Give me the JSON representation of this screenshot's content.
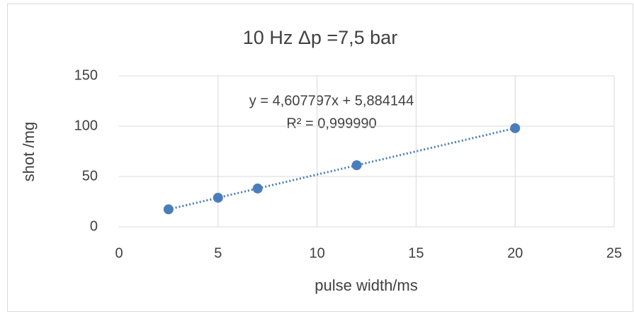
{
  "chart_data": {
    "type": "scatter",
    "title": "10 Hz Δp =7,5 bar",
    "x_label": "pulse width/ms",
    "y_label": "shot /mg",
    "annotations": [
      "y = 4,607797x + 5,884144",
      "R² = 0,999990"
    ],
    "x": [
      2.5,
      5,
      7,
      12,
      20
    ],
    "values": [
      17.4,
      28.9,
      38.1,
      61.2,
      98.0
    ],
    "color": "#4a7ebb",
    "trendline": true,
    "xlim": [
      0,
      25
    ],
    "xticks": [
      0,
      5,
      10,
      15,
      20,
      25
    ],
    "ylim": [
      0,
      150
    ],
    "yticks": [
      0,
      50,
      100,
      150
    ],
    "grid": true
  }
}
